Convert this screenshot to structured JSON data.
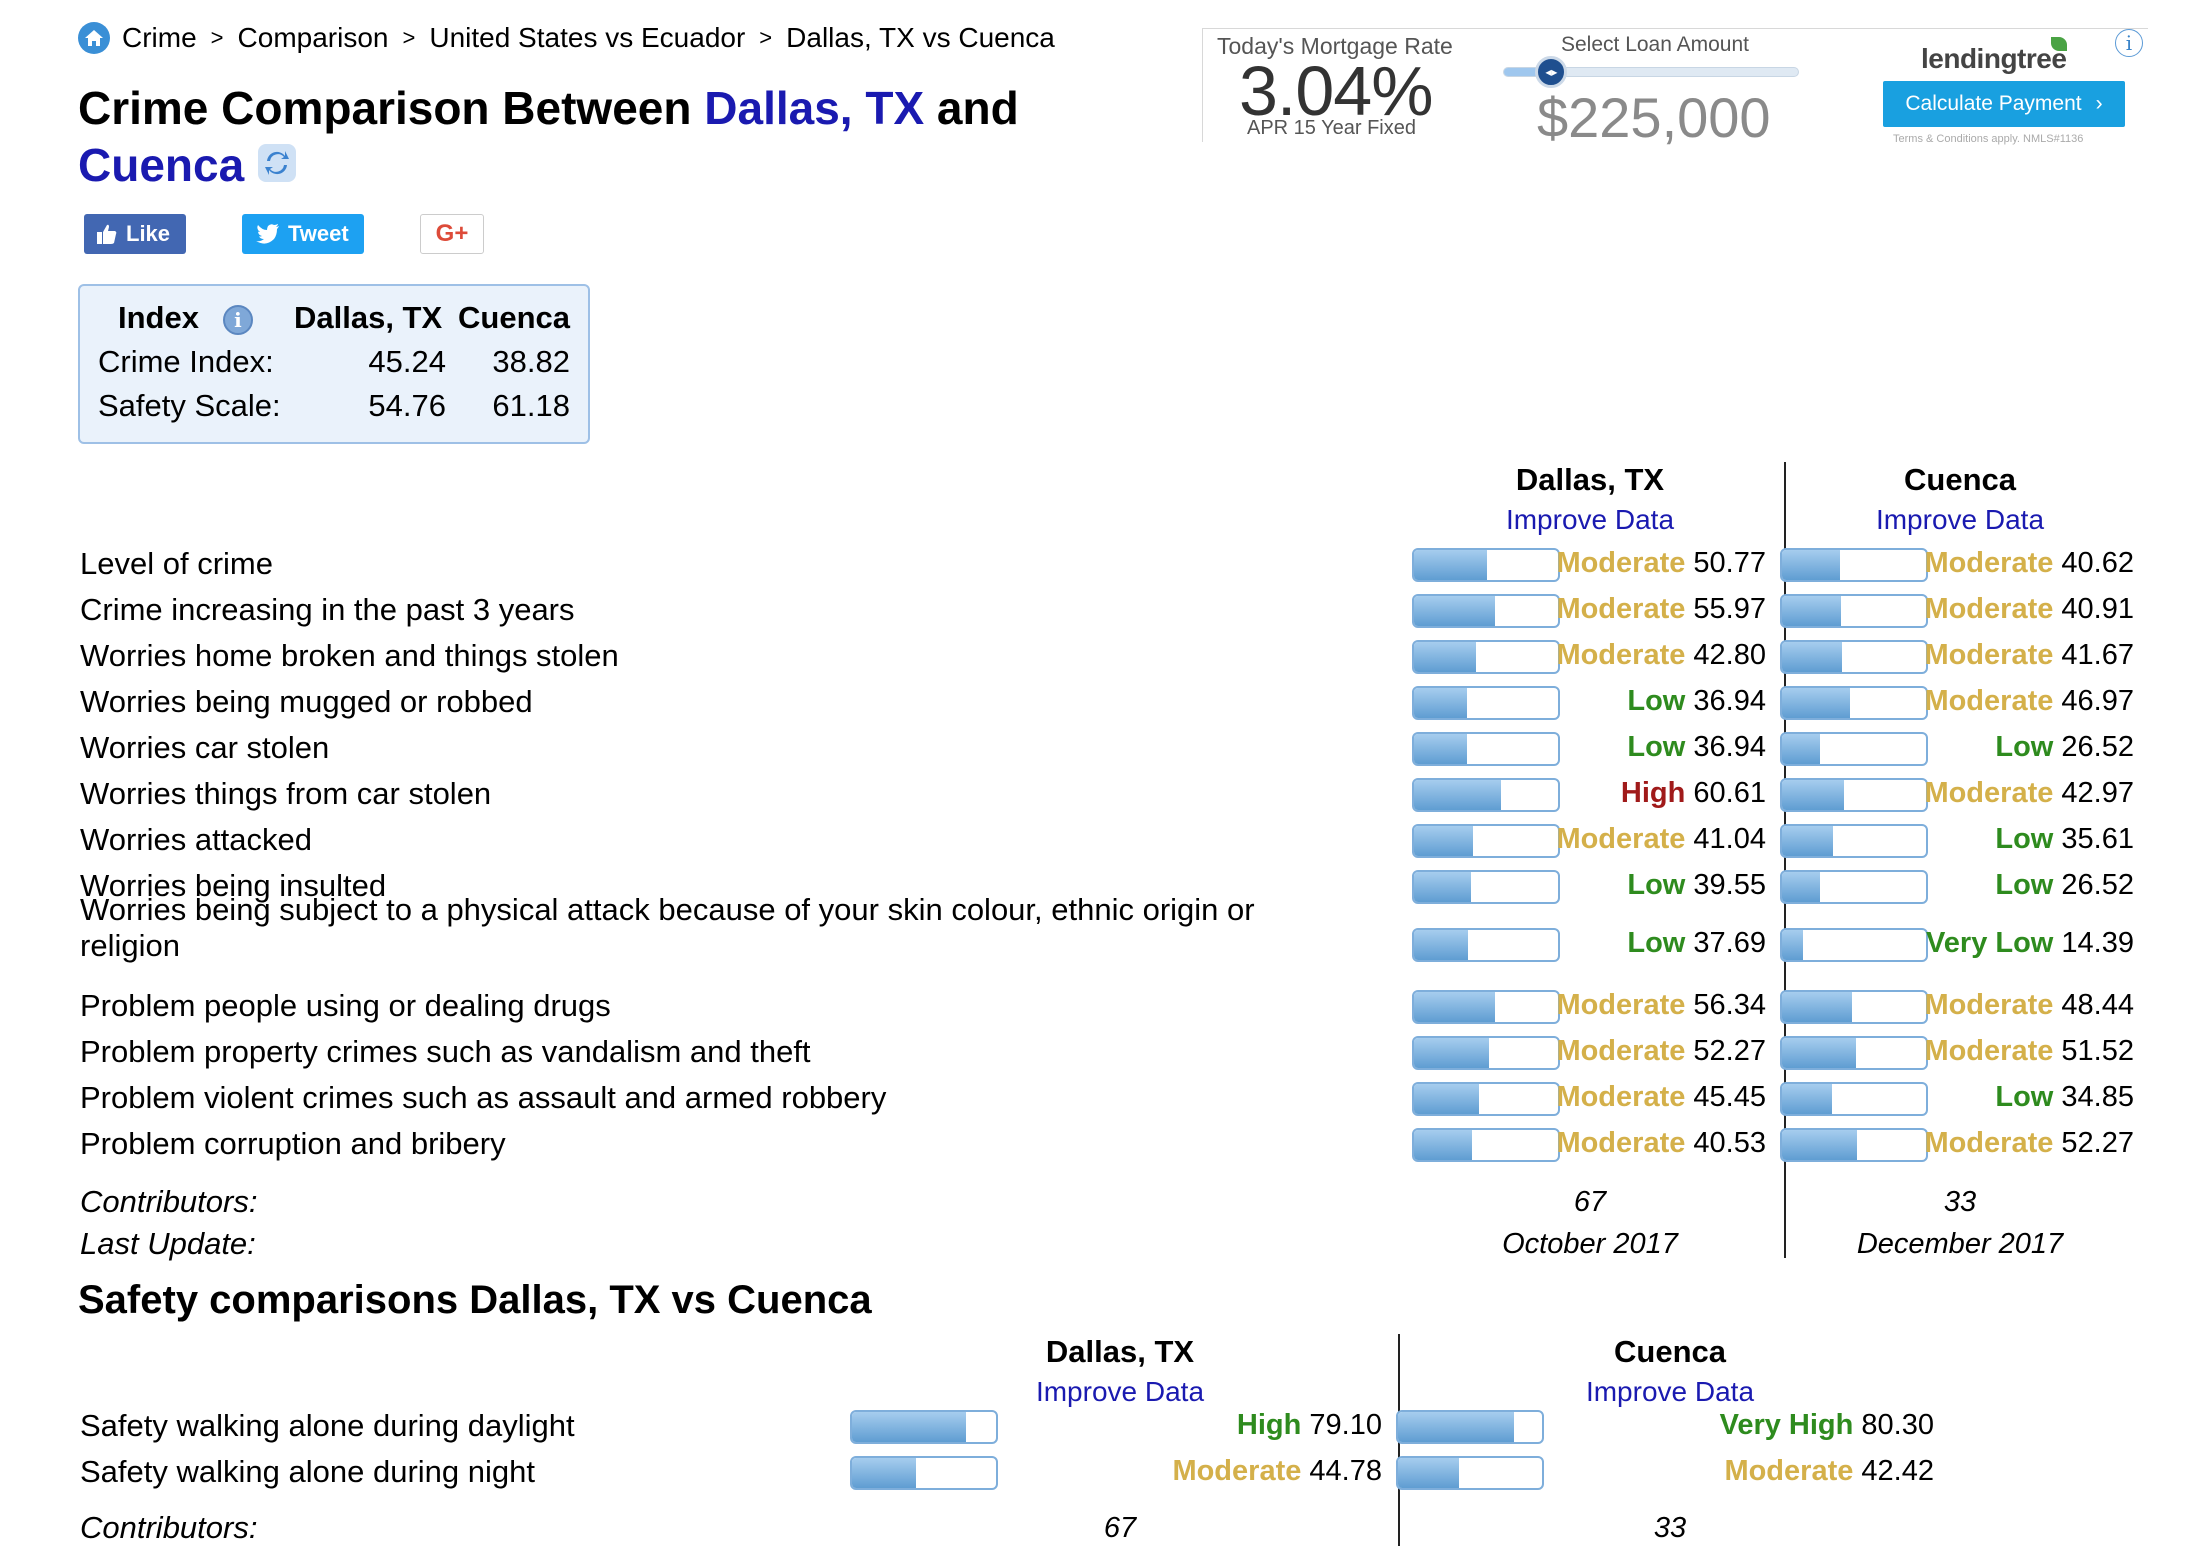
{
  "breadcrumb": {
    "items": [
      "Crime",
      "Comparison",
      "United States vs Ecuador",
      "Dallas, TX vs Cuenca"
    ],
    "separator": ">"
  },
  "title": {
    "prefix": "Crime Comparison Between ",
    "city1": "Dallas, TX",
    "middle": " and ",
    "city2": "Cuenca"
  },
  "social": {
    "like": "Like",
    "tweet": "Tweet",
    "gplus": "G+"
  },
  "index_box": {
    "header": [
      "Index",
      "Dallas, TX",
      "Cuenca"
    ],
    "rows": [
      {
        "label": "Crime Index:",
        "city1": "45.24",
        "city2": "38.82"
      },
      {
        "label": "Safety Scale:",
        "city1": "54.76",
        "city2": "61.18"
      }
    ]
  },
  "mortgage": {
    "rate_label": "Today's Mortgage Rate",
    "rate": "3.04%",
    "apr": "APR 15 Year Fixed",
    "loan_label": "Select Loan Amount",
    "amount": "$225,000",
    "slider_fraction": 0.16,
    "brand": "lendingtree",
    "button": "Calculate Payment",
    "terms": "Terms & Conditions apply. NMLS#1136",
    "colors": {
      "button": "#19a0e0",
      "leaf": "#4aa344"
    }
  },
  "crime": {
    "city1": "Dallas, TX",
    "city2": "Cuenca",
    "improve": "Improve Data",
    "rows": [
      {
        "label": "Level of crime",
        "c1": {
          "level": "Moderate",
          "value": "50.77"
        },
        "c2": {
          "level": "Moderate",
          "value": "40.62"
        }
      },
      {
        "label": "Crime increasing in the past 3 years",
        "c1": {
          "level": "Moderate",
          "value": "55.97"
        },
        "c2": {
          "level": "Moderate",
          "value": "40.91"
        }
      },
      {
        "label": "Worries home broken and things stolen",
        "c1": {
          "level": "Moderate",
          "value": "42.80"
        },
        "c2": {
          "level": "Moderate",
          "value": "41.67"
        }
      },
      {
        "label": "Worries being mugged or robbed",
        "c1": {
          "level": "Low",
          "value": "36.94"
        },
        "c2": {
          "level": "Moderate",
          "value": "46.97"
        }
      },
      {
        "label": "Worries car stolen",
        "c1": {
          "level": "Low",
          "value": "36.94"
        },
        "c2": {
          "level": "Low",
          "value": "26.52"
        }
      },
      {
        "label": "Worries things from car stolen",
        "c1": {
          "level": "High",
          "value": "60.61"
        },
        "c2": {
          "level": "Moderate",
          "value": "42.97"
        }
      },
      {
        "label": "Worries attacked",
        "c1": {
          "level": "Moderate",
          "value": "41.04"
        },
        "c2": {
          "level": "Low",
          "value": "35.61"
        }
      },
      {
        "label": "Worries being insulted",
        "c1": {
          "level": "Low",
          "value": "39.55"
        },
        "c2": {
          "level": "Low",
          "value": "26.52"
        }
      },
      {
        "label": "Worries being subject to a physical attack because of your skin colour, ethnic origin or religion",
        "c1": {
          "level": "Low",
          "value": "37.69"
        },
        "c2": {
          "level": "Very Low",
          "value": "14.39"
        }
      },
      {
        "label": "Problem people using or dealing drugs",
        "c1": {
          "level": "Moderate",
          "value": "56.34"
        },
        "c2": {
          "level": "Moderate",
          "value": "48.44"
        }
      },
      {
        "label": "Problem property crimes such as vandalism and theft",
        "c1": {
          "level": "Moderate",
          "value": "52.27"
        },
        "c2": {
          "level": "Moderate",
          "value": "51.52"
        }
      },
      {
        "label": "Problem violent crimes such as assault and armed robbery",
        "c1": {
          "level": "Moderate",
          "value": "45.45"
        },
        "c2": {
          "level": "Low",
          "value": "34.85"
        }
      },
      {
        "label": "Problem corruption and bribery",
        "c1": {
          "level": "Moderate",
          "value": "40.53"
        },
        "c2": {
          "level": "Moderate",
          "value": "52.27"
        }
      }
    ],
    "contributors_label": "Contributors:",
    "contributors": [
      "67",
      "33"
    ],
    "last_update_label": "Last Update:",
    "last_update": [
      "October 2017",
      "December 2017"
    ]
  },
  "safety": {
    "title": "Safety comparisons Dallas, TX vs Cuenca",
    "city1": "Dallas, TX",
    "city2": "Cuenca",
    "improve": "Improve Data",
    "rows": [
      {
        "label": "Safety walking alone during daylight",
        "c1": {
          "level": "High",
          "value": "79.10"
        },
        "c2": {
          "level": "Very High",
          "value": "80.30"
        }
      },
      {
        "label": "Safety walking alone during night",
        "c1": {
          "level": "Moderate",
          "value": "44.78"
        },
        "c2": {
          "level": "Moderate",
          "value": "42.42"
        }
      }
    ],
    "contributors_label": "Contributors:",
    "contributors": [
      "67",
      "33"
    ]
  },
  "level_colors": {
    "Moderate": "#d4b04a",
    "Low": "#2e8b1e",
    "Very Low": "#2e8b1e",
    "High": "#a01a1a",
    "Very High": "#2e8b1e"
  }
}
